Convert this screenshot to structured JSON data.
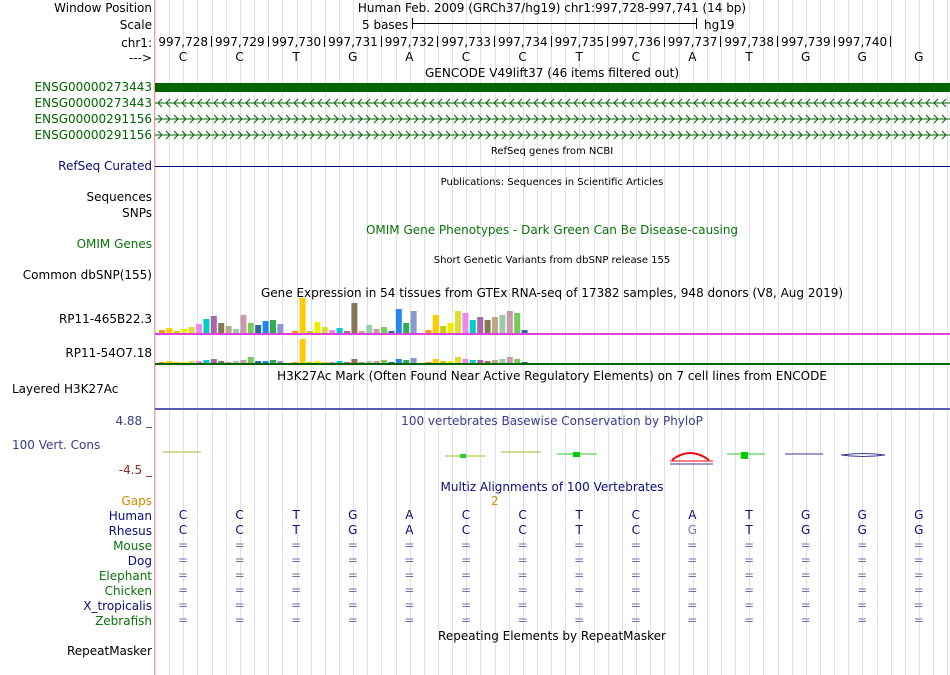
{
  "header": {
    "window_position_label": "Window Position",
    "scale_label": "Scale",
    "chrom_label": "chr1:",
    "strand_label": "--->",
    "assembly_title": "Human Feb. 2009 (GRCh37/hg19)   chr1:997,728-997,741 (14 bp)",
    "scale_text": "5 bases",
    "scale_db": "hg19",
    "positions": [
      "997,728",
      "997,729",
      "997,730",
      "997,731",
      "997,732",
      "997,733",
      "997,734",
      "997,735",
      "997,736",
      "997,737",
      "997,738",
      "997,739",
      "997,740"
    ],
    "bases": [
      "C",
      "C",
      "T",
      "G",
      "A",
      "C",
      "C",
      "T",
      "C",
      "A",
      "T",
      "G",
      "G",
      "G"
    ]
  },
  "tracks": {
    "gencode": {
      "title": "GENCODE V49lift37 (46 items filtered out)",
      "genes": [
        "ENSG00000273443",
        "ENSG00000273443",
        "ENSG00000291156",
        "ENSG00000291156"
      ],
      "color": "#006400"
    },
    "refseq": {
      "label": "RefSeq Curated",
      "title": "RefSeq genes from NCBI",
      "color": "#0c0c78"
    },
    "publications": {
      "title": "Publications: Sequences in Scientific Articles"
    },
    "sequences_label": "Sequences",
    "snps_label": "SNPs",
    "omim": {
      "label": "OMIM Genes",
      "title": "OMIM Gene Phenotypes - Dark Green Can Be Disease-causing",
      "color": "#0a730a"
    },
    "dbsnp": {
      "label": "Common dbSNP(155)",
      "title": "Short Genetic Variants from dbSNP release 155"
    },
    "gtex": {
      "title": "Gene Expression in 54 tissues from GTEx RNA-seq of 17382 samples, 948 donors (V8, Aug 2019)",
      "genes": [
        "RP11-465B22.3",
        "RP11-54O7.18"
      ]
    },
    "h3k27ac": {
      "label": "Layered H3K27Ac",
      "title": "H3K27Ac Mark (Often Found Near Active Regulatory Elements) on 7 cell lines from ENCODE"
    },
    "phylop": {
      "label": "100 Vert. Cons",
      "title": "100 vertebrates Basewise Conservation by PhyloP",
      "max": "4.88 _",
      "min": "-4.5 _",
      "color": "#3a3a8c"
    },
    "multiz": {
      "title": "Multiz Alignments of 100 Vertebrates",
      "gaps_label": "Gaps",
      "gap_marker": "2",
      "species": [
        "Human",
        "Rhesus",
        "Mouse",
        "Dog",
        "Elephant",
        "Chicken",
        "X_tropicalis",
        "Zebrafish"
      ],
      "rhesus": [
        "C",
        "C",
        "T",
        "G",
        "A",
        "C",
        "C",
        "T",
        "C",
        "G",
        "T",
        "G",
        "G",
        "G"
      ],
      "dash": "="
    },
    "repeatmasker": {
      "label": "RepeatMasker",
      "title": "Repeating Elements by RepeatMasker"
    }
  }
}
